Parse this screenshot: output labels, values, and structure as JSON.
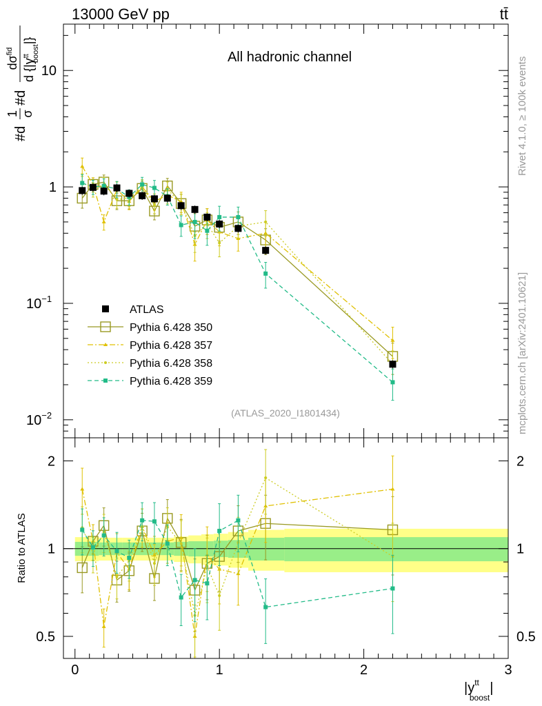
{
  "header": {
    "left": "13000 GeV pp",
    "right": "tt̄"
  },
  "side_labels": {
    "rivet": "Rivet 4.1.0, ≥ 100k events",
    "mcplots": "mcplots.cern.ch [arXiv:2401.10621]"
  },
  "chart_data": [
    {
      "type": "scatter",
      "title": "All hadronic channel",
      "watermark": "(ATLAS_2020_I1801434)",
      "ylabel": "#d1/σ#d dσ^fid / d{|y^tt_boost|}",
      "ylabel_parts": {
        "prefix": "#d",
        "frac1_num": "1",
        "frac1_den": "σ",
        "mid": "#d",
        "frac2_num": "dσ",
        "frac2_num_sup": "fid",
        "frac2_den": "d {|y",
        "frac2_den_sup": "tt",
        "frac2_den_sub": "boost",
        "frac2_den_tail": "|}"
      },
      "xlabel": "|y^tt_boost|",
      "xlabel_parts": {
        "base": "|y",
        "sup": "tt",
        "sub": "boost",
        "tail": "|"
      },
      "yscale": "log",
      "xlim": [
        -0.08,
        3.0
      ],
      "ylim": [
        0.007,
        25
      ],
      "yticks": [
        {
          "value": 0.01,
          "label": "10",
          "exp": "−2"
        },
        {
          "value": 0.1,
          "label": "10",
          "exp": "−1"
        },
        {
          "value": 1,
          "label": "1",
          "exp": ""
        },
        {
          "value": 10,
          "label": "10",
          "exp": ""
        }
      ],
      "legend_position": "lower-left",
      "x": [
        0.05,
        0.125,
        0.2,
        0.29,
        0.375,
        0.465,
        0.55,
        0.64,
        0.735,
        0.83,
        0.915,
        1.0,
        1.13,
        1.32,
        2.2
      ],
      "series": [
        {
          "name": "ATLAS",
          "style": "data",
          "color": "#000000",
          "values": [
            0.93,
            0.99,
            0.92,
            0.98,
            0.88,
            0.84,
            0.79,
            0.8,
            0.69,
            0.64,
            0.55,
            0.48,
            0.44,
            0.285,
            0.03
          ]
        },
        {
          "name": "Pythia 6.428 350",
          "style": "solid-open-square",
          "color": "#999922",
          "values": [
            0.8,
            1.05,
            1.1,
            0.76,
            0.76,
            0.97,
            0.62,
            1.02,
            0.72,
            0.46,
            0.52,
            0.45,
            0.5,
            0.35,
            0.035
          ]
        },
        {
          "name": "Pythia 6.428 357",
          "style": "dashdot-triangle",
          "color": "#e0c000",
          "values": [
            1.5,
            1.05,
            0.5,
            0.95,
            0.75,
            1.0,
            0.75,
            0.85,
            0.75,
            0.32,
            0.52,
            0.41,
            0.36,
            0.4,
            0.048
          ]
        },
        {
          "name": "Pythia 6.428 358",
          "style": "dotted-dot",
          "color": "#cccc22",
          "values": [
            1.1,
            0.95,
            1.05,
            0.78,
            0.8,
            1.0,
            0.7,
            0.95,
            0.72,
            0.38,
            0.48,
            0.33,
            0.46,
            0.5,
            0.03
          ]
        },
        {
          "name": "Pythia 6.428 359",
          "style": "dashed-filled-square",
          "color": "#22bb88",
          "values": [
            1.08,
            1.0,
            1.02,
            0.96,
            0.82,
            1.05,
            0.98,
            0.83,
            0.47,
            0.5,
            0.42,
            0.55,
            0.55,
            0.18,
            0.021
          ]
        }
      ]
    },
    {
      "type": "scatter",
      "ylabel": "Ratio to ATLAS",
      "yscale": "log",
      "ylim": [
        0.42,
        2.4
      ],
      "yticks": [
        {
          "value": 0.5,
          "label": "0.5"
        },
        {
          "value": 1,
          "label": "1"
        },
        {
          "value": 2,
          "label": "2"
        }
      ],
      "xticks": [
        {
          "value": 0,
          "label": "0"
        },
        {
          "value": 1,
          "label": "1"
        },
        {
          "value": 2,
          "label": "2"
        },
        {
          "value": 3,
          "label": "3"
        }
      ],
      "band_edges": [
        0.0,
        0.085,
        0.165,
        0.245,
        0.33,
        0.42,
        0.51,
        0.595,
        0.685,
        0.785,
        0.875,
        0.96,
        1.06,
        1.2,
        1.45,
        3.0
      ],
      "band_green_half": [
        0.055,
        0.055,
        0.05,
        0.05,
        0.05,
        0.05,
        0.05,
        0.05,
        0.055,
        0.06,
        0.06,
        0.065,
        0.07,
        0.09,
        0.095
      ],
      "band_yellow_half": [
        0.095,
        0.095,
        0.09,
        0.09,
        0.09,
        0.09,
        0.09,
        0.09,
        0.1,
        0.11,
        0.12,
        0.125,
        0.14,
        0.16,
        0.17
      ],
      "series": [
        {
          "name": "Pythia 6.428 350",
          "color": "#999922",
          "values": [
            0.86,
            1.06,
            1.2,
            0.78,
            0.84,
            1.15,
            0.79,
            1.27,
            1.05,
            0.72,
            0.89,
            0.94,
            1.15,
            1.22,
            1.16
          ]
        },
        {
          "name": "Pythia 6.428 357",
          "color": "#e0c000",
          "values": [
            1.6,
            1.06,
            0.54,
            0.97,
            0.85,
            1.19,
            0.95,
            1.06,
            1.09,
            0.5,
            0.95,
            0.85,
            0.82,
            1.4,
            1.6
          ]
        },
        {
          "name": "Pythia 6.428 358",
          "color": "#cccc22",
          "values": [
            1.18,
            0.96,
            1.14,
            0.8,
            0.91,
            1.19,
            0.89,
            1.19,
            1.04,
            0.59,
            0.87,
            0.69,
            1.05,
            1.75,
            0.94
          ]
        },
        {
          "name": "Pythia 6.428 359",
          "color": "#22bb88",
          "values": [
            1.16,
            1.01,
            1.11,
            0.98,
            0.93,
            1.25,
            1.24,
            1.04,
            0.68,
            0.78,
            0.76,
            1.15,
            1.25,
            0.63,
            0.73
          ]
        }
      ]
    }
  ]
}
